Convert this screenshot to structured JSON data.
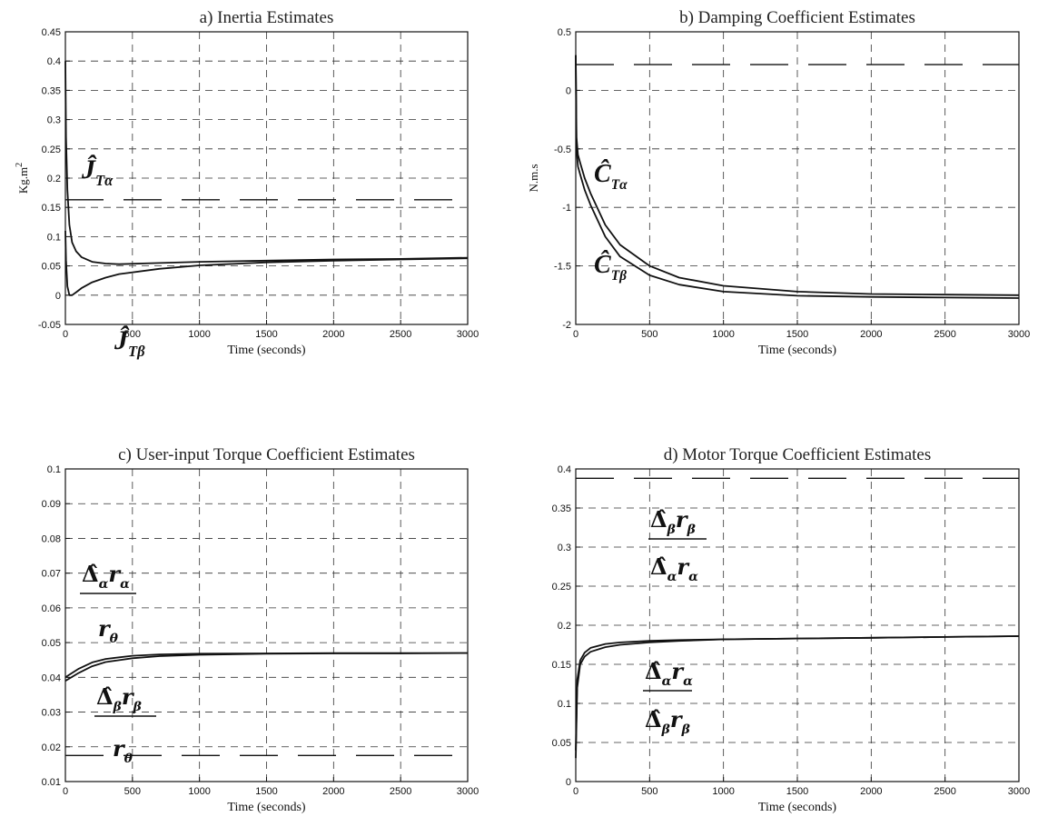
{
  "chart_data": [
    {
      "id": "a",
      "type": "line",
      "title": "a) Inertia Estimates",
      "xlabel": "Time (seconds)",
      "ylabel": "Kg.m",
      "ylabel_sup": "2",
      "xlim": [
        0,
        3000
      ],
      "ylim": [
        -0.05,
        0.45
      ],
      "xticks": [
        0,
        500,
        1000,
        1500,
        2000,
        2500,
        3000
      ],
      "xtick_labels": [
        "0",
        "500",
        "1000",
        "1500",
        "2000",
        "2500",
        "3000"
      ],
      "yticks": [
        -0.05,
        0,
        0.05,
        0.1,
        0.15,
        0.2,
        0.25,
        0.3,
        0.35,
        0.4,
        0.45
      ],
      "ytick_labels": [
        "-0.05",
        "0",
        "0.05",
        "0.1",
        "0.15",
        "0.2",
        "0.25",
        "0.3",
        "0.35",
        "0.4",
        "0.45"
      ],
      "grid": true,
      "reference_lines": [
        0.163
      ],
      "series": [
        {
          "x": [
            0,
            5,
            15,
            30,
            50,
            80,
            120,
            200,
            300,
            400,
            700,
            1000,
            1500,
            2000,
            2500,
            3000
          ],
          "y": [
            0.4,
            0.27,
            0.18,
            0.12,
            0.09,
            0.075,
            0.065,
            0.057,
            0.054,
            0.053,
            0.055,
            0.057,
            0.059,
            0.061,
            0.062,
            0.064
          ]
        },
        {
          "x": [
            0,
            5,
            15,
            30,
            50,
            80,
            120,
            200,
            300,
            400,
            700,
            1000,
            1500,
            2000,
            2500,
            3000
          ],
          "y": [
            0.11,
            0.06,
            0.015,
            0.0,
            0.0,
            0.005,
            0.012,
            0.022,
            0.03,
            0.036,
            0.045,
            0.051,
            0.056,
            0.059,
            0.061,
            0.063
          ]
        }
      ],
      "annotations": [
        {
          "base": "Ĵ",
          "sub": "Tα"
        },
        {
          "base": "Ĵ",
          "sub": "Tβ"
        }
      ]
    },
    {
      "id": "b",
      "type": "line",
      "title": "b) Damping Coefficient Estimates",
      "xlabel": "Time (seconds)",
      "ylabel": "N.m.s",
      "ylabel_sup": "",
      "xlim": [
        0,
        3000
      ],
      "ylim": [
        -2,
        0.5
      ],
      "xticks": [
        0,
        500,
        1000,
        1500,
        2000,
        2500,
        3000
      ],
      "xtick_labels": [
        "0",
        "500",
        "1000",
        "1500",
        "2000",
        "2500",
        "3000"
      ],
      "yticks": [
        -2,
        -1.5,
        -1,
        -0.5,
        0,
        0.5
      ],
      "ytick_labels": [
        "-2",
        "-1.5",
        "-1",
        "-0.5",
        "0",
        "0.5"
      ],
      "grid": true,
      "reference_lines": [
        0.22
      ],
      "series": [
        {
          "x": [
            0,
            5,
            15,
            30,
            60,
            100,
            200,
            300,
            500,
            700,
            1000,
            1500,
            2000,
            2500,
            3000
          ],
          "y": [
            0.3,
            -0.4,
            -0.55,
            -0.62,
            -0.75,
            -0.88,
            -1.15,
            -1.32,
            -1.5,
            -1.6,
            -1.67,
            -1.72,
            -1.74,
            -1.745,
            -1.75
          ]
        },
        {
          "x": [
            0,
            5,
            15,
            30,
            60,
            100,
            200,
            300,
            500,
            700,
            1000,
            1500,
            2000,
            2500,
            3000
          ],
          "y": [
            0.3,
            -0.5,
            -0.65,
            -0.72,
            -0.85,
            -0.98,
            -1.25,
            -1.42,
            -1.58,
            -1.66,
            -1.72,
            -1.755,
            -1.765,
            -1.77,
            -1.775
          ]
        }
      ],
      "annotations": [
        {
          "base": "Ĉ",
          "sub": "Tα"
        },
        {
          "base": "Ĉ",
          "sub": "Tβ"
        }
      ]
    },
    {
      "id": "c",
      "type": "line",
      "title": "c) User-input Torque Coefficient Estimates",
      "xlabel": "Time (seconds)",
      "ylabel": "",
      "ylabel_sup": "",
      "xlim": [
        0,
        3000
      ],
      "ylim": [
        0.01,
        0.1
      ],
      "xticks": [
        0,
        500,
        1000,
        1500,
        2000,
        2500,
        3000
      ],
      "xtick_labels": [
        "0",
        "500",
        "1000",
        "1500",
        "2000",
        "2500",
        "3000"
      ],
      "yticks": [
        0.01,
        0.02,
        0.03,
        0.04,
        0.05,
        0.06,
        0.07,
        0.08,
        0.09,
        0.1
      ],
      "ytick_labels": [
        "0.01",
        "0.02",
        "0.03",
        "0.04",
        "0.05",
        "0.06",
        "0.07",
        "0.08",
        "0.09",
        "0.1"
      ],
      "grid": true,
      "reference_lines": [
        0.0175
      ],
      "series": [
        {
          "x": [
            0,
            100,
            200,
            300,
            500,
            700,
            1000,
            1500,
            2000,
            2500,
            3000
          ],
          "y": [
            0.04,
            0.0425,
            0.0443,
            0.0453,
            0.0462,
            0.0466,
            0.0468,
            0.0469,
            0.047,
            0.047,
            0.047
          ]
        },
        {
          "x": [
            0,
            100,
            200,
            300,
            500,
            700,
            1000,
            1500,
            2000,
            2500,
            3000
          ],
          "y": [
            0.039,
            0.0413,
            0.0432,
            0.0444,
            0.0455,
            0.0461,
            0.0465,
            0.0468,
            0.0469,
            0.0469,
            0.047
          ]
        }
      ],
      "annotations": [
        {
          "num_base": "Δ̂",
          "num_sub1": "α",
          "num_r": "r",
          "num_sub2": "α",
          "den_r": "r",
          "den_sub": "θ"
        },
        {
          "num_base": "Δ̂",
          "num_sub1": "β",
          "num_r": "r",
          "num_sub2": "β",
          "den_r": "r",
          "den_sub": "θ"
        }
      ]
    },
    {
      "id": "d",
      "type": "line",
      "title": "d) Motor Torque Coefficient Estimates",
      "xlabel": "Time (seconds)",
      "ylabel": "",
      "ylabel_sup": "",
      "xlim": [
        0,
        3000
      ],
      "ylim": [
        0,
        0.4
      ],
      "xticks": [
        0,
        500,
        1000,
        1500,
        2000,
        2500,
        3000
      ],
      "xtick_labels": [
        "0",
        "500",
        "1000",
        "1500",
        "2000",
        "2500",
        "3000"
      ],
      "yticks": [
        0,
        0.05,
        0.1,
        0.15,
        0.2,
        0.25,
        0.3,
        0.35,
        0.4
      ],
      "ytick_labels": [
        "0",
        "0.05",
        "0.1",
        "0.15",
        "0.2",
        "0.25",
        "0.3",
        "0.35",
        "0.4"
      ],
      "grid": true,
      "reference_lines": [
        0.388
      ],
      "series": [
        {
          "x": [
            0,
            10,
            30,
            60,
            100,
            200,
            300,
            500,
            700,
            1000,
            1500,
            2000,
            2500,
            3000
          ],
          "y": [
            0.03,
            0.12,
            0.15,
            0.16,
            0.166,
            0.172,
            0.175,
            0.178,
            0.18,
            0.182,
            0.183,
            0.184,
            0.185,
            0.186
          ]
        },
        {
          "x": [
            0,
            10,
            30,
            60,
            100,
            200,
            300,
            500,
            700,
            1000,
            1500,
            2000,
            2500,
            3000
          ],
          "y": [
            0.04,
            0.13,
            0.155,
            0.165,
            0.171,
            0.176,
            0.178,
            0.18,
            0.181,
            0.182,
            0.183,
            0.184,
            0.185,
            0.186
          ]
        }
      ],
      "annotations": [
        {
          "num_base": "Δ̂",
          "num_sub1": "β",
          "num_r": "r",
          "num_sub2": "β",
          "den_base": "Δ̂",
          "den_sub1": "α",
          "den_r": "r",
          "den_sub2": "α"
        },
        {
          "num_base": "Δ̂",
          "num_sub1": "α",
          "num_r": "r",
          "num_sub2": "α",
          "den_base": "Δ̂",
          "den_sub1": "β",
          "den_r": "r",
          "den_sub2": "β"
        }
      ]
    }
  ]
}
